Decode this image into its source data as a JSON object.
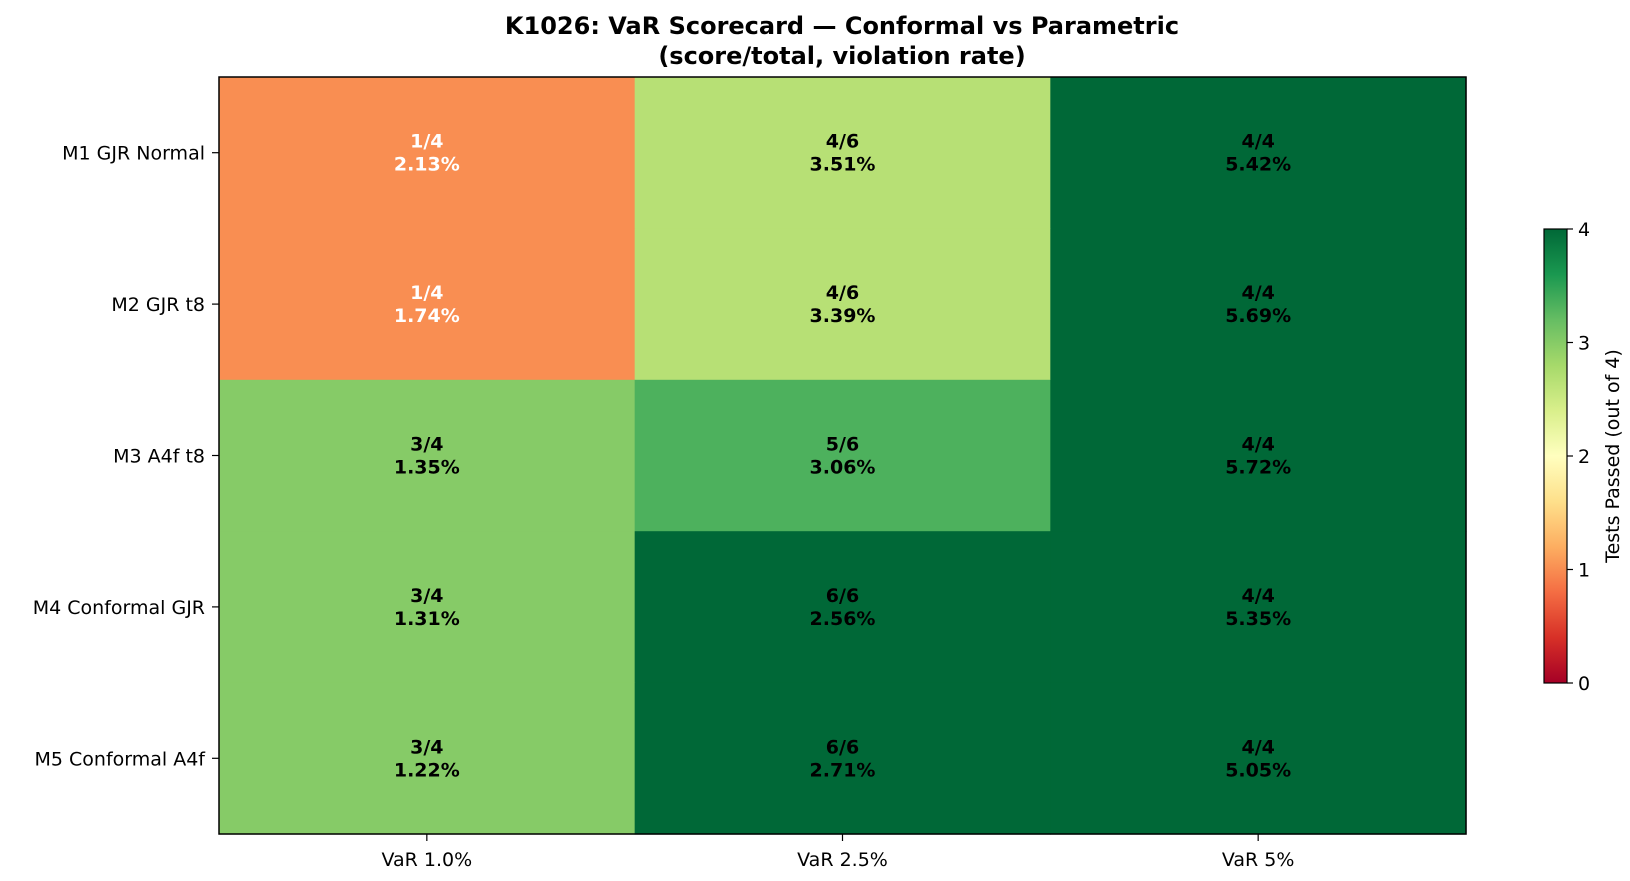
{
  "chart_data": {
    "type": "heatmap",
    "title": "K1026: VaR Scorecard — Conformal vs Parametric",
    "subtitle": "(score/total, violation rate)",
    "columns": [
      "VaR 1.0%",
      "VaR 2.5%",
      "VaR 5%"
    ],
    "rows": [
      "M1 GJR Normal",
      "M2 GJR t8",
      "M3 A4f t8",
      "M4 Conformal GJR",
      "M5 Conformal A4f"
    ],
    "cells": [
      [
        {
          "score": 1,
          "total": 4,
          "label": "1/4",
          "rate": "2.13%"
        },
        {
          "score": 4,
          "total": 6,
          "label": "4/6",
          "rate": "3.51%"
        },
        {
          "score": 4,
          "total": 4,
          "label": "4/4",
          "rate": "5.42%"
        }
      ],
      [
        {
          "score": 1,
          "total": 4,
          "label": "1/4",
          "rate": "1.74%"
        },
        {
          "score": 4,
          "total": 6,
          "label": "4/6",
          "rate": "3.39%"
        },
        {
          "score": 4,
          "total": 4,
          "label": "4/4",
          "rate": "5.69%"
        }
      ],
      [
        {
          "score": 3,
          "total": 4,
          "label": "3/4",
          "rate": "1.35%"
        },
        {
          "score": 5,
          "total": 6,
          "label": "5/6",
          "rate": "3.06%"
        },
        {
          "score": 4,
          "total": 4,
          "label": "4/4",
          "rate": "5.72%"
        }
      ],
      [
        {
          "score": 3,
          "total": 4,
          "label": "3/4",
          "rate": "1.31%"
        },
        {
          "score": 6,
          "total": 6,
          "label": "6/6",
          "rate": "2.56%"
        },
        {
          "score": 4,
          "total": 4,
          "label": "4/4",
          "rate": "5.35%"
        }
      ],
      [
        {
          "score": 3,
          "total": 4,
          "label": "3/4",
          "rate": "1.22%"
        },
        {
          "score": 6,
          "total": 6,
          "label": "6/6",
          "rate": "2.71%"
        },
        {
          "score": 4,
          "total": 4,
          "label": "4/4",
          "rate": "5.05%"
        }
      ]
    ],
    "colorbar": {
      "label": "Tests Passed (out of 4)",
      "min": 0,
      "max": 4,
      "ticks": [
        "0",
        "1",
        "2",
        "3",
        "4"
      ],
      "colormap": "RdYlGn"
    },
    "grid": false
  }
}
